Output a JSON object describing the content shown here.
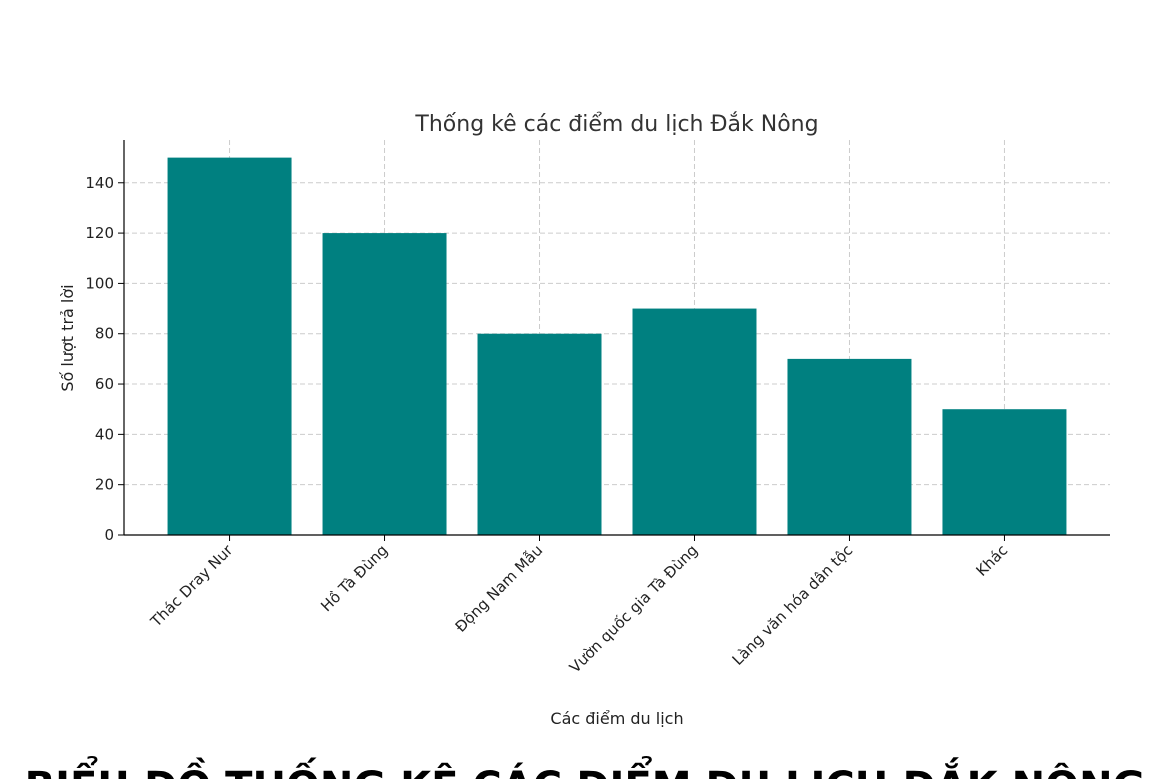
{
  "chart_data": {
    "type": "bar",
    "title": "Thống kê các điểm du lịch Đắk Nông",
    "xlabel": "Các điểm du lịch",
    "ylabel": "Số lượt trả lời",
    "categories": [
      "Thác Dray Nur",
      "Hồ Tà Đùng",
      "Động Nam Mẫu",
      "Vườn quốc gia Tà Đùng",
      "Làng văn hóa dân tộc",
      "Khác"
    ],
    "values": [
      150,
      120,
      80,
      90,
      70,
      50
    ],
    "ylim": [
      0,
      157
    ],
    "yticks": [
      0,
      20,
      40,
      60,
      80,
      100,
      120,
      140
    ],
    "bar_color": "#008080",
    "grid": true,
    "grid_color": "#cccccc"
  },
  "caption": {
    "text": "BIỂU ĐỒ THỐNG KÊ CÁC ĐIỂM DU LỊCH ĐẮK NÔNG"
  }
}
